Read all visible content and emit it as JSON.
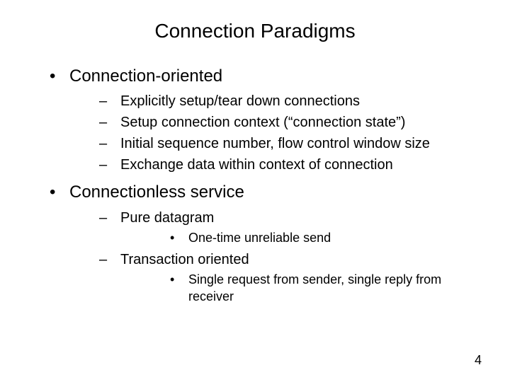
{
  "title": "Connection Paradigms",
  "b1": "Connection-oriented",
  "b1_s1": "Explicitly setup/tear down connections",
  "b1_s2": "Setup connection context (“connection state”)",
  "b1_s3": "Initial sequence number, flow control window size",
  "b1_s4": "Exchange data within context of connection",
  "b2": "Connectionless service",
  "b2_s1": "Pure datagram",
  "b2_s1_t1": "One-time unreliable send",
  "b2_s2": "Transaction oriented",
  "b2_s2_t1": "Single request from sender, single reply from receiver",
  "page_number": "4",
  "colors": {
    "background": "#ffffff",
    "text": "#000000"
  },
  "fonts": {
    "family": "Arial",
    "title_size": 28,
    "level1_size": 24,
    "level2_size": 20,
    "level3_size": 18
  }
}
